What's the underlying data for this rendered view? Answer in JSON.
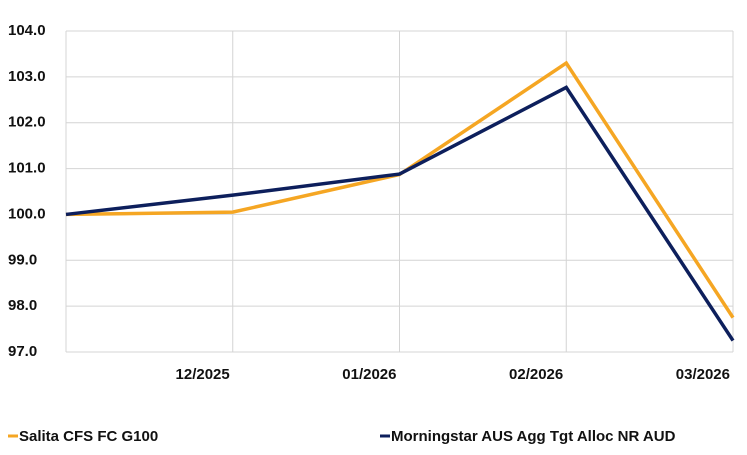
{
  "chart_data": {
    "type": "line",
    "categories": [
      null,
      "12/2025",
      "01/2026",
      "02/2026",
      "03/2026"
    ],
    "series": [
      {
        "name": "Salita CFS FC G100",
        "color": "#f5a623",
        "values": [
          100.0,
          100.05,
          100.87,
          103.3,
          97.75
        ]
      },
      {
        "name": "Morningstar AUS Agg Tgt Alloc NR AUD",
        "color": "#0d1f5c",
        "values": [
          100.0,
          100.42,
          100.88,
          102.77,
          97.25
        ]
      }
    ],
    "ylim": [
      97.0,
      104.0
    ],
    "yticks": [
      {
        "value": 97,
        "label": "97.0"
      },
      {
        "value": 98,
        "label": "98.0"
      },
      {
        "value": 99,
        "label": "99.0"
      },
      {
        "value": 100,
        "label": "100.0"
      },
      {
        "value": 101,
        "label": "101.0"
      },
      {
        "value": 102,
        "label": "102.0"
      },
      {
        "value": 103,
        "label": "103.0"
      },
      {
        "value": 104,
        "label": "104.0"
      }
    ],
    "grid": true
  }
}
